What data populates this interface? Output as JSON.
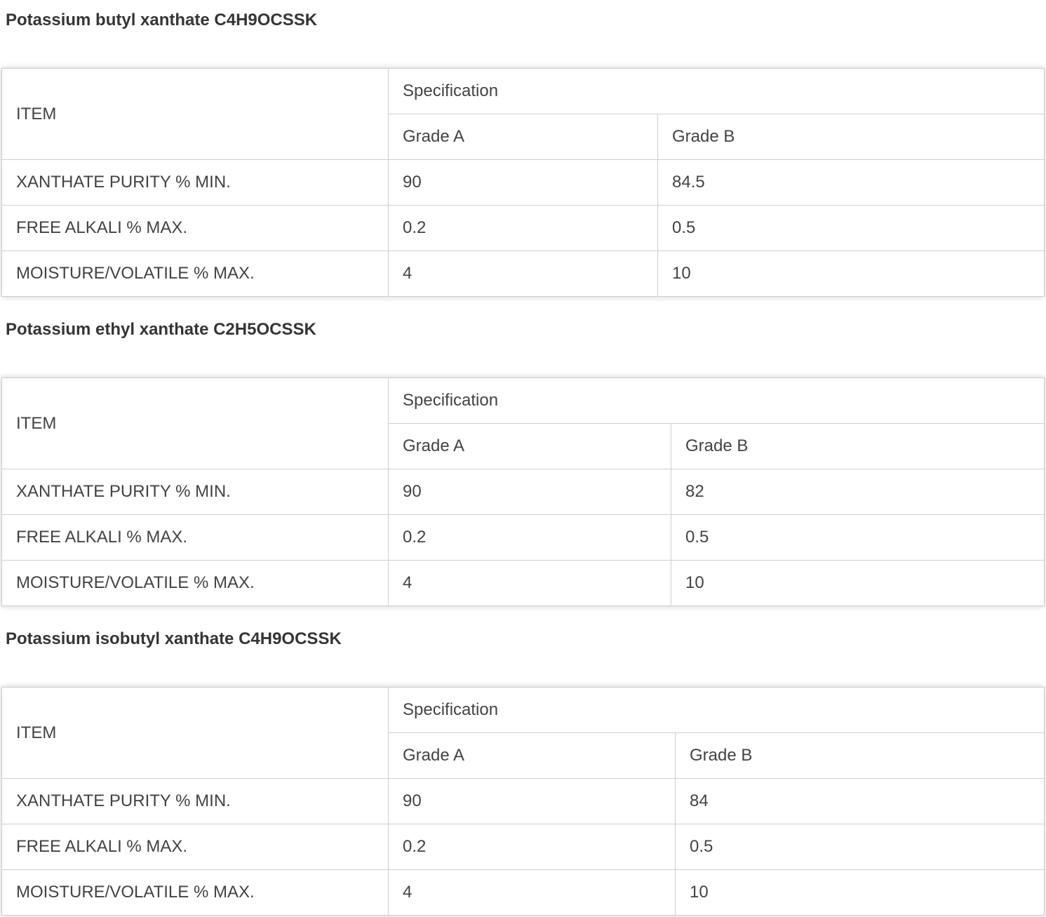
{
  "page": {
    "background_color": "#ffffff",
    "table_border_color": "#cfcfcf",
    "title_text_color": "#353535",
    "body_text_color": "#434343"
  },
  "sections": [
    {
      "title": "Potassium butyl xanthate C4H9OCSSK",
      "table": {
        "item_header": "ITEM",
        "spec_header": "Specification",
        "grade_a_label": "Grade A",
        "grade_b_label": "Grade B",
        "rows": [
          {
            "item": "XANTHATE PURITY % MIN.",
            "grade_a": "90",
            "grade_b": "84.5"
          },
          {
            "item": "FREE ALKALI % MAX.",
            "grade_a": "0.2",
            "grade_b": "0.5"
          },
          {
            "item": "MOISTURE/VOLATILE % MAX.",
            "grade_a": "4",
            "grade_b": "10"
          }
        ]
      }
    },
    {
      "title": "Potassium ethyl xanthate C2H5OCSSK",
      "table": {
        "item_header": "ITEM",
        "spec_header": "Specification",
        "grade_a_label": "Grade A",
        "grade_b_label": "Grade B",
        "rows": [
          {
            "item": "XANTHATE PURITY % MIN.",
            "grade_a": "90",
            "grade_b": "82"
          },
          {
            "item": "FREE ALKALI % MAX.",
            "grade_a": "0.2",
            "grade_b": "0.5"
          },
          {
            "item": "MOISTURE/VOLATILE % MAX.",
            "grade_a": "4",
            "grade_b": "10"
          }
        ]
      }
    },
    {
      "title": "Potassium isobutyl xanthate C4H9OCSSK",
      "table": {
        "item_header": "ITEM",
        "spec_header": "Specification",
        "grade_a_label": "Grade A",
        "grade_b_label": "Grade B",
        "rows": [
          {
            "item": "XANTHATE PURITY % MIN.",
            "grade_a": "90",
            "grade_b": "84"
          },
          {
            "item": "FREE ALKALI % MAX.",
            "grade_a": "0.2",
            "grade_b": "0.5"
          },
          {
            "item": "MOISTURE/VOLATILE % MAX.",
            "grade_a": "4",
            "grade_b": "10"
          }
        ]
      }
    }
  ]
}
